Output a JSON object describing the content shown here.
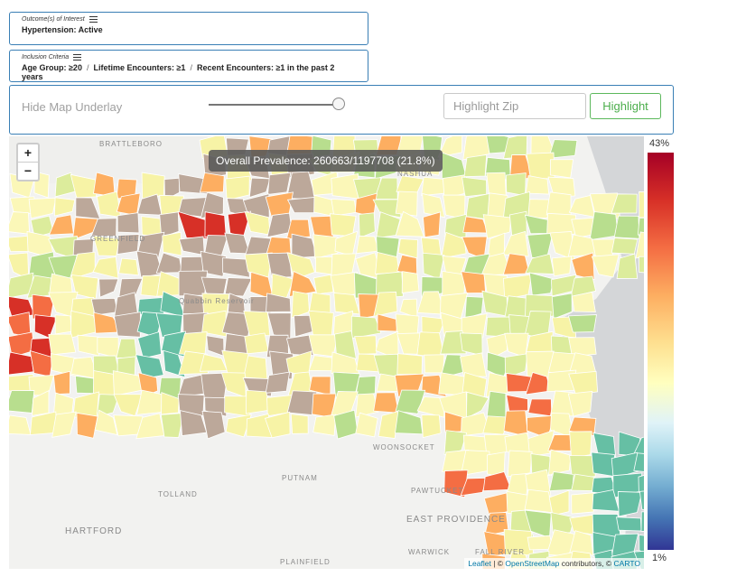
{
  "filters": {
    "outcome": {
      "title": "Outcome(s) of Interest",
      "value": "Hypertension: Active"
    },
    "inclusion": {
      "title": "Inclusion Criteria",
      "items": [
        "Age Group: ≥20",
        "Lifetime Encounters: ≥1",
        "Recent Encounters: ≥1 in the past 2 years"
      ],
      "separator": "/"
    }
  },
  "controls": {
    "hide_label": "Hide Map Underlay",
    "slider_value_percent": 100,
    "zip_placeholder": "Highlight Zip",
    "highlight_label": "Highlight"
  },
  "map": {
    "prevalence": "Overall Prevalence: 260663/1197708 (21.8%)",
    "zoom_in": "+",
    "zoom_out": "−",
    "place_labels": [
      "BRATTLEBORO",
      "NASHUA",
      "GREENFIELD",
      "Quabbin Reservoir",
      "WOONSOCKET",
      "PUTNAM",
      "TOLLAND",
      "HARTFORD",
      "PAWTUCKET",
      "EAST PROVIDENCE",
      "WARWICK",
      "FALL RIVER",
      "PLAINFIELD"
    ],
    "attribution": {
      "leaflet": "Leaflet",
      "sep": " | © ",
      "osm": "OpenStreetMap",
      "contrib": " contributors, © ",
      "carto": "CARTO"
    }
  },
  "legend": {
    "max": "43%",
    "min": "1%",
    "colors": [
      "#a50026",
      "#d73027",
      "#f46d43",
      "#fdae61",
      "#fee090",
      "#ffffbf",
      "#e0f3f8",
      "#abd9e9",
      "#74add1",
      "#4575b4",
      "#313695"
    ]
  }
}
